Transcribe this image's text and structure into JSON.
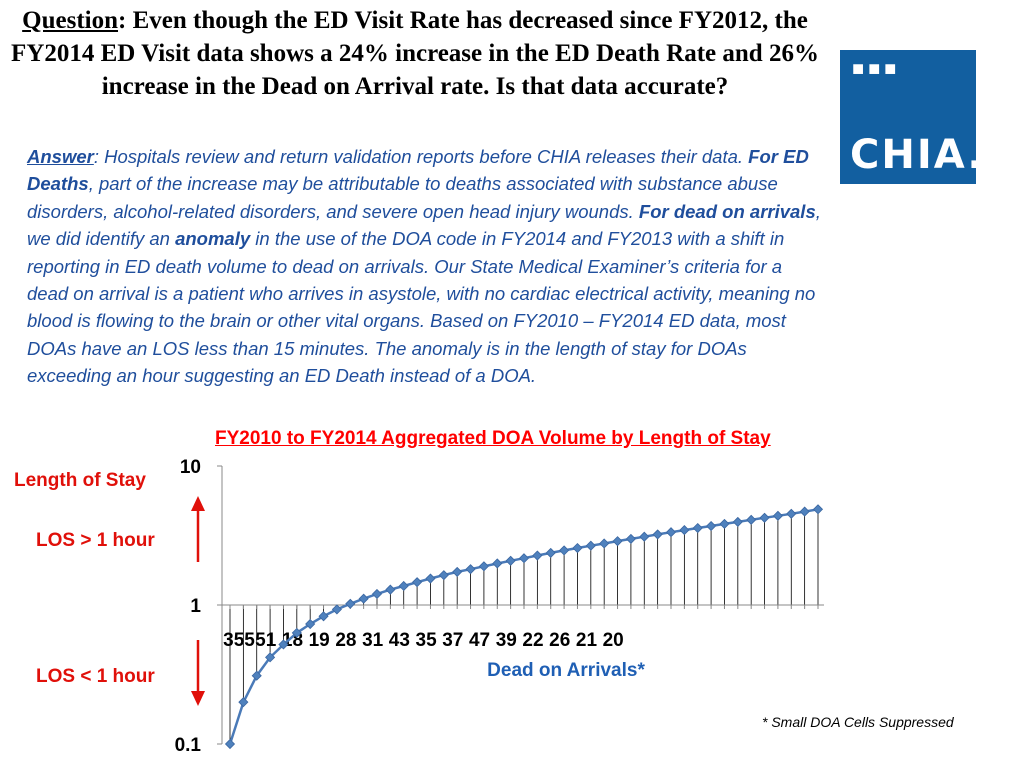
{
  "question": {
    "label": "Question",
    "text": ": Even though the ED Visit Rate has decreased since FY2012, the FY2014 ED Visit data shows a 24% increase in the ED Death Rate and 26% increase in the Dead on Arrival rate. Is that data accurate?"
  },
  "answer": {
    "label": "Answer",
    "part1": ": Hospitals  review and return validation reports before CHIA releases their data. ",
    "bold1": "For ED Deaths",
    "part2": ", part of the increase  may be attributable  to deaths associated with substance abuse disorders,  alcohol-related disorders, and severe open head injury wounds.   ",
    "bold2_pre": "For ",
    "bold2_dead": "dead on arrivals",
    "part3": ", we did identify an ",
    "bold3": "anomaly",
    "part4": " in the use of the DOA  code in FY2014 and FY2013 with a shift in reporting in ED death volume to dead on arrivals.  Our State Medical Examiner’s criteria for a dead on arrival is a patient who arrives in asystole, with no cardiac electrical activity, meaning  no blood is flowing to the brain or other vital organs.  Based on FY2010 – FY2014 ED data, most DOAs have an LOS less than 15 minutes. The anomaly is in the length of stay for  DOAs exceeding an hour  suggesting an ED Death instead  of a DOA."
  },
  "logo": {
    "dots": "■■■",
    "text": "CHIA."
  },
  "labels": {
    "length_of_stay": "Length of Stay",
    "los_gt": "LOS > 1 hour",
    "los_lt": "LOS < 1 hour"
  },
  "footnote": "* Small DOA Cells Suppressed",
  "colors": {
    "line": "#4a7ab8",
    "marker": "#4f81bd",
    "arrow": "#e0100a",
    "title": "#ff0000",
    "xlabel": "#1f5fb4"
  },
  "chart_data": {
    "type": "line",
    "title": "FY2010 to FY2014 Aggregated DOA Volume by Length of Stay",
    "xlabel": "Dead on Arrivals*",
    "ylabel": "",
    "yscale": "log",
    "ylim": [
      0.1,
      10
    ],
    "yticks": [
      0.1,
      1,
      10
    ],
    "ytick_labels": [
      "0.1",
      "1",
      "10"
    ],
    "grid": false,
    "x_tick_labels": [
      "355",
      "51",
      "18",
      "19",
      "28",
      "31",
      "43",
      "35",
      "37",
      "47",
      "39",
      "22",
      "26",
      "21",
      "20"
    ],
    "x_tick_every": 2,
    "values": [
      0.1,
      0.2,
      0.31,
      0.42,
      0.52,
      0.63,
      0.73,
      0.83,
      0.93,
      1.02,
      1.11,
      1.2,
      1.29,
      1.37,
      1.46,
      1.55,
      1.64,
      1.73,
      1.81,
      1.9,
      1.99,
      2.08,
      2.17,
      2.27,
      2.37,
      2.47,
      2.57,
      2.67,
      2.77,
      2.88,
      2.99,
      3.1,
      3.22,
      3.34,
      3.46,
      3.58,
      3.7,
      3.83,
      3.96,
      4.1,
      4.24,
      4.38,
      4.53,
      4.7,
      4.88
    ]
  }
}
